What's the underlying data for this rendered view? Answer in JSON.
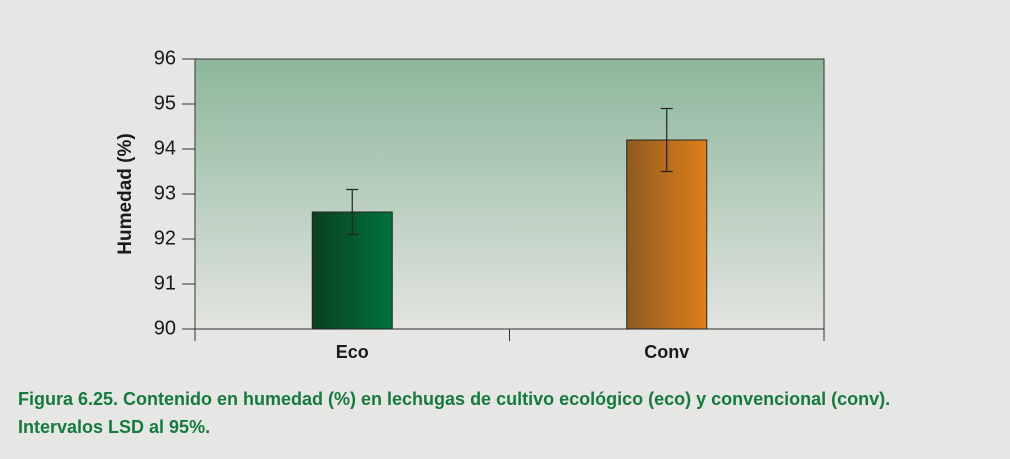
{
  "chart_data": {
    "type": "bar",
    "y_label": "Humedad (%)",
    "categories": [
      "Eco",
      "Conv"
    ],
    "values": [
      92.6,
      94.2
    ],
    "errors": [
      0.5,
      0.7
    ],
    "colors": [
      "#00733a",
      "#e07f1a"
    ],
    "ylim": [
      90,
      96
    ],
    "yticks": [
      90,
      91,
      92,
      93,
      94,
      95,
      96
    ]
  },
  "caption": [
    "Figura 6.25. Contenido en humedad (%) en lechugas de cultivo ecológico (eco) y convencional (conv).",
    "Intervalos LSD al 95%."
  ]
}
